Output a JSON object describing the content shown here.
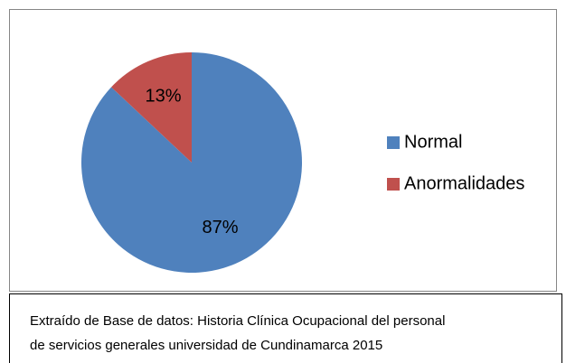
{
  "chart_data": {
    "type": "pie",
    "categories": [
      "Normal",
      "Anormalidades"
    ],
    "values": [
      87,
      13
    ],
    "value_labels": [
      "87%",
      "13%"
    ],
    "colors": [
      "#4f81bd",
      "#c0504d"
    ],
    "legend": "right",
    "caption": [
      "Extraído de Base de datos: Historia Clínica Ocupacional del personal",
      "de servicios generales universidad de Cundinamarca 2015"
    ]
  }
}
